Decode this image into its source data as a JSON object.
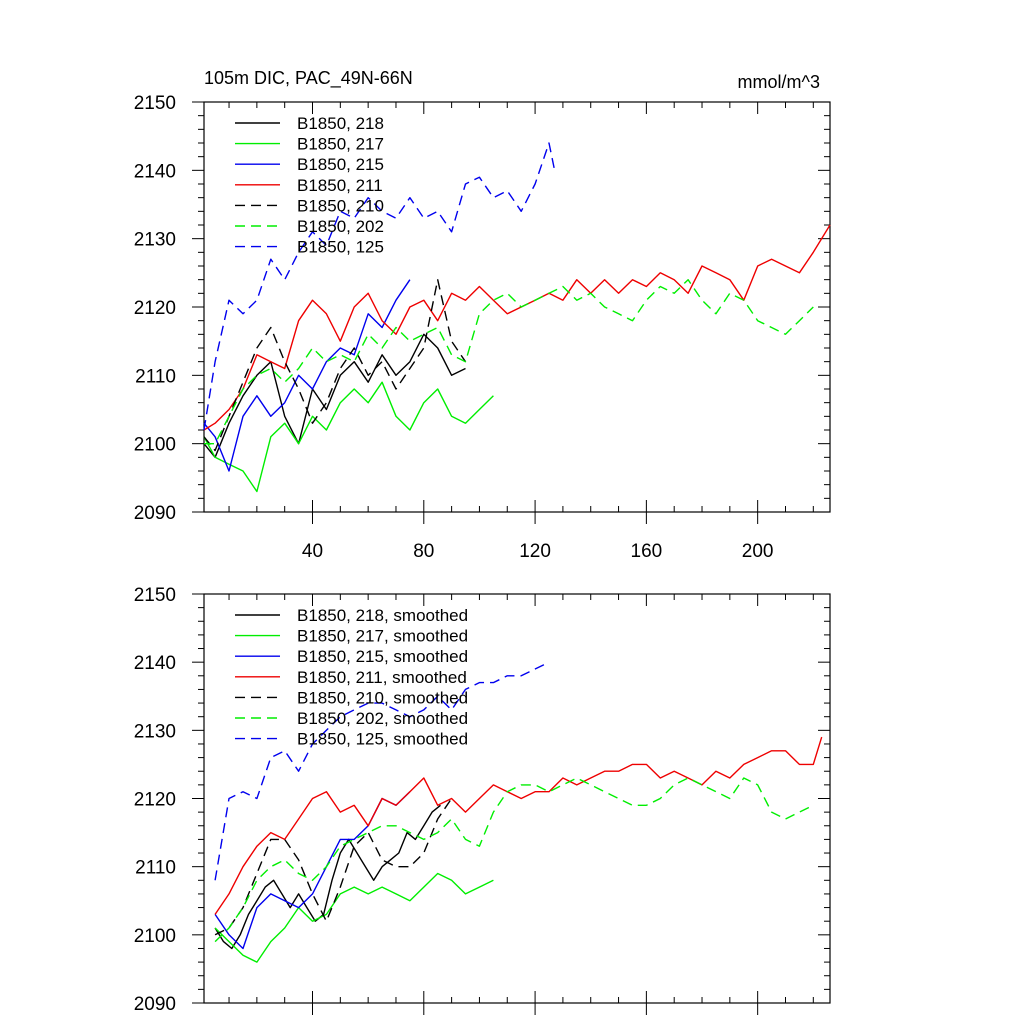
{
  "chart_data": [
    {
      "type": "line",
      "title": "105m DIC, PAC_49N-66N",
      "units": "mmol/m^3",
      "xlim": [
        1,
        226
      ],
      "ylim": [
        2090,
        2150
      ],
      "xticks": [
        40,
        80,
        120,
        160,
        200
      ],
      "xtick_labels": [
        "40",
        "80",
        "120",
        "160",
        "200"
      ],
      "yticks": [
        2090,
        2100,
        2110,
        2120,
        2130,
        2140,
        2150
      ],
      "ytick_labels": [
        "2090",
        "2100",
        "2110",
        "2120",
        "2130",
        "2140",
        "2150"
      ],
      "legend_position": "top-left",
      "series": [
        {
          "name": "B1850, 218",
          "color": "#000000",
          "dash": "solid",
          "x": [
            1,
            5,
            10,
            15,
            20,
            25,
            30,
            35,
            40,
            45,
            50,
            55,
            60,
            65,
            70,
            75,
            80,
            85,
            90,
            95
          ],
          "y": [
            2100,
            2098,
            2103,
            2107,
            2110,
            2112,
            2104,
            2100,
            2108,
            2105,
            2110,
            2112,
            2109,
            2113,
            2110,
            2112,
            2116,
            2114,
            2110,
            2111
          ]
        },
        {
          "name": "B1850, 217",
          "color": "#00ee00",
          "dash": "solid",
          "x": [
            1,
            5,
            10,
            15,
            20,
            25,
            30,
            35,
            40,
            45,
            50,
            55,
            60,
            65,
            70,
            75,
            80,
            85,
            90,
            95,
            100,
            105
          ],
          "y": [
            2101,
            2098,
            2097,
            2096,
            2093,
            2101,
            2103,
            2100,
            2104,
            2102,
            2106,
            2108,
            2106,
            2109,
            2104,
            2102,
            2106,
            2108,
            2104,
            2103,
            2105,
            2107
          ]
        },
        {
          "name": "B1850, 215",
          "color": "#0000ee",
          "dash": "solid",
          "x": [
            1,
            5,
            10,
            15,
            20,
            25,
            30,
            35,
            40,
            45,
            50,
            55,
            60,
            65,
            70,
            75
          ],
          "y": [
            2103,
            2101,
            2096,
            2104,
            2107,
            2104,
            2106,
            2110,
            2108,
            2112,
            2114,
            2113,
            2119,
            2117,
            2121,
            2124
          ]
        },
        {
          "name": "B1850, 211",
          "color": "#ee0000",
          "dash": "solid",
          "x": [
            1,
            5,
            10,
            15,
            20,
            25,
            30,
            35,
            40,
            45,
            50,
            55,
            60,
            65,
            70,
            75,
            80,
            85,
            90,
            95,
            100,
            105,
            110,
            115,
            120,
            125,
            130,
            135,
            140,
            145,
            150,
            155,
            160,
            165,
            170,
            175,
            180,
            185,
            190,
            195,
            200,
            205,
            210,
            215,
            220,
            226
          ],
          "y": [
            2102,
            2103,
            2105,
            2108,
            2113,
            2112,
            2111,
            2118,
            2121,
            2119,
            2115,
            2120,
            2122,
            2118,
            2116,
            2120,
            2121,
            2118,
            2122,
            2121,
            2123,
            2121,
            2119,
            2120,
            2121,
            2122,
            2121,
            2124,
            2122,
            2124,
            2122,
            2124,
            2123,
            2125,
            2124,
            2122,
            2126,
            2125,
            2124,
            2121,
            2126,
            2127,
            2126,
            2125,
            2128,
            2132
          ]
        },
        {
          "name": "B1850, 210",
          "color": "#000000",
          "dash": "dashed",
          "x": [
            1,
            5,
            10,
            15,
            20,
            25,
            30,
            35,
            40,
            45,
            50,
            55,
            60,
            65,
            70,
            75,
            80,
            85,
            90,
            95
          ],
          "y": [
            2101,
            2099,
            2104,
            2109,
            2114,
            2117,
            2112,
            2108,
            2103,
            2106,
            2111,
            2114,
            2110,
            2112,
            2108,
            2111,
            2114,
            2124,
            2115,
            2112
          ]
        },
        {
          "name": "B1850, 202",
          "color": "#00ee00",
          "dash": "dashed",
          "x": [
            1,
            5,
            10,
            15,
            20,
            25,
            30,
            35,
            40,
            45,
            50,
            55,
            60,
            65,
            70,
            75,
            80,
            85,
            90,
            95,
            100,
            105,
            110,
            115,
            120,
            125,
            130,
            135,
            140,
            145,
            150,
            155,
            160,
            165,
            170,
            175,
            180,
            185,
            190,
            195,
            200,
            205,
            210,
            215,
            220
          ],
          "y": [
            2100,
            2100,
            2104,
            2108,
            2110,
            2111,
            2109,
            2111,
            2114,
            2112,
            2113,
            2112,
            2116,
            2114,
            2117,
            2115,
            2116,
            2117,
            2113,
            2112,
            2119,
            2121,
            2122,
            2120,
            2121,
            2122,
            2123,
            2121,
            2122,
            2120,
            2119,
            2118,
            2121,
            2123,
            2122,
            2124,
            2121,
            2119,
            2122,
            2121,
            2118,
            2117,
            2116,
            2118,
            2120
          ]
        },
        {
          "name": "B1850, 125",
          "color": "#0000ee",
          "dash": "dashed",
          "x": [
            1,
            5,
            10,
            15,
            20,
            25,
            30,
            35,
            40,
            45,
            50,
            55,
            60,
            65,
            70,
            75,
            80,
            85,
            90,
            95,
            100,
            105,
            110,
            115,
            120,
            125,
            127
          ],
          "y": [
            2102,
            2112,
            2121,
            2119,
            2121,
            2127,
            2124,
            2128,
            2131,
            2129,
            2134,
            2133,
            2136,
            2134,
            2133,
            2136,
            2133,
            2134,
            2131,
            2138,
            2139,
            2136,
            2137,
            2134,
            2138,
            2144,
            2140
          ]
        }
      ]
    },
    {
      "type": "line",
      "xlim": [
        1,
        226
      ],
      "ylim": [
        2090,
        2150
      ],
      "xticks": [
        40,
        80,
        120,
        160,
        200
      ],
      "yticks": [
        2090,
        2100,
        2110,
        2120,
        2130,
        2140,
        2150
      ],
      "ytick_labels": [
        "2090",
        "2100",
        "2110",
        "2120",
        "2130",
        "2140",
        "2150"
      ],
      "legend_position": "top-left",
      "series": [
        {
          "name": "B1850, 218, smoothed",
          "color": "#000000",
          "dash": "solid",
          "x": [
            5,
            8,
            11,
            14,
            17,
            20,
            23,
            26,
            29,
            32,
            35,
            38,
            41,
            44,
            47,
            50,
            53,
            56,
            59,
            62,
            65,
            68,
            71,
            74,
            77,
            80,
            83,
            86
          ],
          "y": [
            2101,
            2099,
            2098,
            2100,
            2103,
            2105,
            2107,
            2108,
            2106,
            2104,
            2106,
            2104,
            2102,
            2103,
            2108,
            2112,
            2114,
            2112,
            2110,
            2108,
            2110,
            2111,
            2112,
            2115,
            2114,
            2116,
            2118,
            2119
          ]
        },
        {
          "name": "B1850, 217, smoothed",
          "color": "#00ee00",
          "dash": "solid",
          "x": [
            5,
            10,
            15,
            20,
            25,
            30,
            35,
            40,
            45,
            50,
            55,
            60,
            65,
            70,
            75,
            80,
            85,
            90,
            95,
            100,
            105
          ],
          "y": [
            2101,
            2099,
            2097,
            2096,
            2099,
            2101,
            2104,
            2102,
            2103,
            2106,
            2107,
            2106,
            2107,
            2106,
            2105,
            2107,
            2109,
            2108,
            2106,
            2107,
            2108
          ]
        },
        {
          "name": "B1850, 215, smoothed",
          "color": "#0000ee",
          "dash": "solid",
          "x": [
            5,
            10,
            15,
            20,
            25,
            30,
            35,
            40,
            45,
            50,
            55,
            60,
            65,
            70,
            75
          ],
          "y": [
            2103,
            2100,
            2098,
            2104,
            2106,
            2105,
            2104,
            2106,
            2110,
            2114,
            2114,
            2116,
            2120,
            2119,
            2121
          ]
        },
        {
          "name": "B1850, 211, smoothed",
          "color": "#ee0000",
          "dash": "solid",
          "x": [
            5,
            10,
            15,
            20,
            25,
            30,
            35,
            40,
            45,
            50,
            55,
            60,
            65,
            70,
            75,
            80,
            85,
            90,
            95,
            100,
            105,
            110,
            115,
            120,
            125,
            130,
            135,
            140,
            145,
            150,
            155,
            160,
            165,
            170,
            175,
            180,
            185,
            190,
            195,
            200,
            205,
            210,
            215,
            220,
            223
          ],
          "y": [
            2103,
            2106,
            2110,
            2113,
            2115,
            2114,
            2117,
            2120,
            2121,
            2118,
            2119,
            2116,
            2120,
            2119,
            2121,
            2123,
            2119,
            2120,
            2118,
            2120,
            2122,
            2121,
            2120,
            2121,
            2121,
            2123,
            2122,
            2123,
            2124,
            2124,
            2125,
            2125,
            2123,
            2124,
            2123,
            2122,
            2124,
            2123,
            2125,
            2126,
            2127,
            2127,
            2125,
            2125,
            2129
          ]
        },
        {
          "name": "B1850, 210, smoothed",
          "color": "#000000",
          "dash": "dashed",
          "x": [
            5,
            10,
            15,
            20,
            25,
            30,
            35,
            40,
            45,
            50,
            55,
            60,
            65,
            70,
            75,
            80,
            85,
            90
          ],
          "y": [
            2100,
            2101,
            2104,
            2109,
            2114,
            2114,
            2111,
            2106,
            2102,
            2107,
            2113,
            2115,
            2111,
            2110,
            2110,
            2112,
            2117,
            2120
          ]
        },
        {
          "name": "B1850, 202, smoothed",
          "color": "#00ee00",
          "dash": "dashed",
          "x": [
            5,
            10,
            15,
            20,
            25,
            30,
            35,
            40,
            45,
            50,
            55,
            60,
            65,
            70,
            75,
            80,
            85,
            90,
            95,
            100,
            105,
            110,
            115,
            120,
            125,
            130,
            135,
            140,
            145,
            150,
            155,
            160,
            165,
            170,
            175,
            180,
            185,
            190,
            195,
            200,
            205,
            210,
            215,
            220
          ],
          "y": [
            2099,
            2101,
            2104,
            2108,
            2110,
            2111,
            2109,
            2108,
            2110,
            2113,
            2114,
            2115,
            2116,
            2116,
            2115,
            2114,
            2115,
            2117,
            2114,
            2113,
            2118,
            2121,
            2122,
            2122,
            2121,
            2122,
            2123,
            2122,
            2121,
            2120,
            2119,
            2119,
            2120,
            2122,
            2123,
            2122,
            2121,
            2120,
            2123,
            2122,
            2118,
            2117,
            2118,
            2119
          ]
        },
        {
          "name": "B1850, 125, smoothed",
          "color": "#0000ee",
          "dash": "dashed",
          "x": [
            5,
            10,
            15,
            20,
            25,
            30,
            35,
            40,
            45,
            50,
            55,
            60,
            65,
            70,
            75,
            80,
            85,
            90,
            95,
            100,
            105,
            110,
            115,
            120,
            125
          ],
          "y": [
            2108,
            2120,
            2121,
            2120,
            2126,
            2127,
            2124,
            2128,
            2130,
            2132,
            2133,
            2134,
            2134,
            2133,
            2132,
            2133,
            2135,
            2133,
            2136,
            2137,
            2137,
            2138,
            2138,
            2139,
            2140
          ]
        }
      ]
    }
  ]
}
